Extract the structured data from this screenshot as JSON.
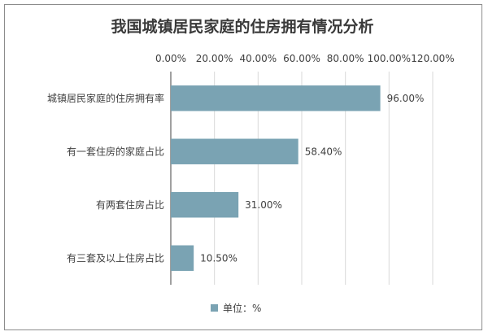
{
  "chart_data": {
    "type": "bar",
    "orientation": "horizontal",
    "title": "我国城镇居民家庭的住房拥有情况分析",
    "categories": [
      "城镇居民家庭的住房拥有率",
      "有一套住房的家庭占比",
      "有两套住房占比",
      "有三套及以上住房占比"
    ],
    "series": [
      {
        "name": "单位：%",
        "values": [
          96.0,
          58.4,
          31.0,
          10.5
        ],
        "value_labels": [
          "96.00%",
          "58.40%",
          "31.00%",
          "10.50%"
        ]
      }
    ],
    "x_axis": {
      "position": "top",
      "range": [
        0,
        120
      ],
      "ticks": [
        0,
        20,
        40,
        60,
        80,
        100,
        120
      ],
      "tick_labels": [
        "0.00%",
        "20.00%",
        "40.00%",
        "60.00%",
        "80.00%",
        "100.00%",
        "120.00%"
      ]
    },
    "grid": true,
    "legend_position": "bottom",
    "colors": {
      "bar": "#7aa3b3",
      "grid": "#d9d9d9",
      "axis": "#404040",
      "text": "#404040",
      "border": "#8c8c8c"
    }
  }
}
